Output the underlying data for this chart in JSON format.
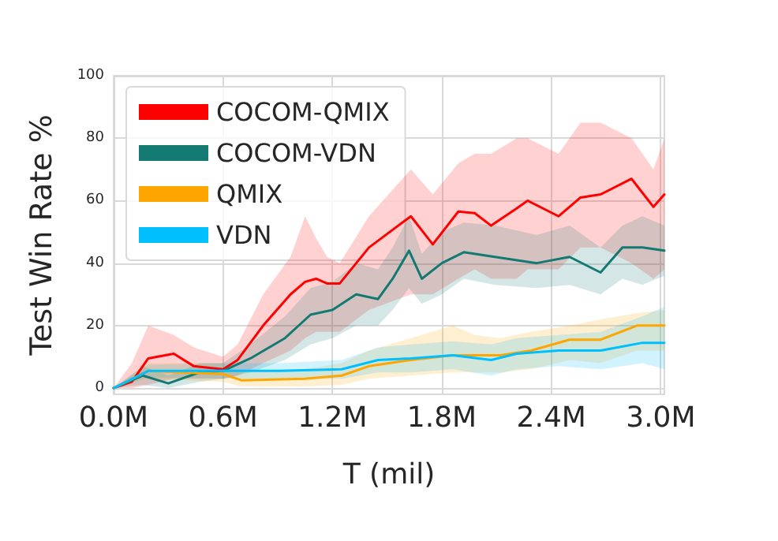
{
  "chart_data": {
    "type": "line",
    "xlabel": "T (mil)",
    "ylabel": "Test Win Rate %",
    "xlim": [
      0,
      3.02
    ],
    "ylim": [
      -2,
      100
    ],
    "xticks": [
      {
        "value": 0,
        "label": "0.0M"
      },
      {
        "value": 0.6,
        "label": "0.6M"
      },
      {
        "value": 1.2,
        "label": "1.2M"
      },
      {
        "value": 1.8,
        "label": "1.8M"
      },
      {
        "value": 2.4,
        "label": "2.4M"
      },
      {
        "value": 3.0,
        "label": "3.0M"
      }
    ],
    "yticks": [
      0,
      20,
      40,
      60,
      80,
      100
    ],
    "grid": true,
    "legend": "top left",
    "marker": "none",
    "line_style": "solid",
    "series": [
      {
        "name": "COCOM-QMIX",
        "color": "#ff0000",
        "x": [
          0,
          0.1,
          0.19,
          0.33,
          0.44,
          0.6,
          0.68,
          0.82,
          0.97,
          1.05,
          1.11,
          1.17,
          1.24,
          1.4,
          1.63,
          1.75,
          1.89,
          1.98,
          2.07,
          2.21,
          2.27,
          2.44,
          2.56,
          2.67,
          2.84,
          2.96,
          3.02
        ],
        "values": [
          0,
          2,
          9.5,
          11,
          7,
          6,
          9,
          20,
          30,
          34,
          35,
          33.5,
          33.5,
          45,
          55,
          46,
          56.5,
          56,
          52,
          57.5,
          60,
          55,
          61,
          62,
          67,
          58,
          62
        ],
        "lower": [
          0,
          0,
          1,
          3,
          3,
          3,
          4,
          8,
          12,
          16,
          18,
          18,
          18,
          25,
          30,
          30,
          35,
          38,
          35,
          35,
          38,
          38,
          45,
          45,
          40,
          35,
          38
        ],
        "upper": [
          0,
          8,
          20,
          17,
          13,
          10,
          14,
          30,
          42,
          55,
          48,
          42,
          40,
          55,
          70,
          62,
          72,
          75,
          75,
          80,
          80,
          75,
          85,
          85,
          80,
          70,
          80
        ]
      },
      {
        "name": "COCOM-VDN",
        "color": "#137a72",
        "x": [
          0,
          0.16,
          0.3,
          0.47,
          0.6,
          0.75,
          0.94,
          1.08,
          1.2,
          1.33,
          1.45,
          1.53,
          1.62,
          1.69,
          1.8,
          1.92,
          2.09,
          2.32,
          2.5,
          2.67,
          2.79,
          2.9,
          3.02
        ],
        "values": [
          0,
          4,
          1.5,
          5,
          5.5,
          9.5,
          16,
          23.5,
          25,
          30,
          28.5,
          35,
          44,
          35,
          40,
          43.5,
          42,
          40,
          42,
          37,
          45,
          45,
          44
        ],
        "lower": [
          0,
          1,
          0,
          2,
          3,
          5,
          9,
          14,
          16,
          20,
          20,
          25,
          32,
          27,
          30,
          35,
          33,
          32,
          33,
          30,
          35,
          33,
          36
        ],
        "upper": [
          0,
          7,
          4,
          8,
          8,
          14,
          23,
          32,
          34,
          40,
          38,
          45,
          55,
          43,
          50,
          53,
          52,
          49,
          52,
          45,
          52,
          55,
          52
        ]
      },
      {
        "name": "QMIX",
        "color": "#ffa500",
        "x": [
          0,
          0.19,
          0.6,
          0.7,
          1.05,
          1.25,
          1.4,
          1.63,
          1.86,
          1.98,
          2.12,
          2.29,
          2.5,
          2.67,
          2.87,
          3.02
        ],
        "values": [
          0,
          5.5,
          4.5,
          2.5,
          3,
          4,
          7,
          9,
          10.5,
          10.5,
          10.5,
          12,
          15.5,
          15.5,
          20,
          20
        ],
        "lower": [
          0,
          3,
          2,
          0.5,
          0.5,
          1,
          3,
          4,
          5,
          5,
          5,
          6,
          9,
          8,
          12,
          12
        ],
        "upper": [
          0,
          8,
          8,
          5,
          6,
          8,
          12,
          16,
          20,
          17,
          16,
          18,
          20,
          22,
          24,
          25
        ]
      },
      {
        "name": "VDN",
        "color": "#00bfff",
        "x": [
          0,
          0.19,
          0.6,
          0.91,
          1.25,
          1.45,
          1.63,
          1.86,
          2.07,
          2.21,
          2.44,
          2.67,
          2.9,
          3.02
        ],
        "values": [
          0,
          5.5,
          5.5,
          5.5,
          6,
          9,
          9.5,
          10.5,
          9,
          11,
          12,
          12,
          14.5,
          14.5
        ],
        "lower": [
          0,
          3.5,
          3,
          3,
          3,
          5,
          5,
          6,
          4,
          6,
          7,
          6,
          8,
          6
        ],
        "upper": [
          0,
          7.5,
          8,
          8,
          9,
          13,
          14,
          15,
          14,
          16,
          17,
          18,
          23,
          26
        ]
      }
    ]
  }
}
